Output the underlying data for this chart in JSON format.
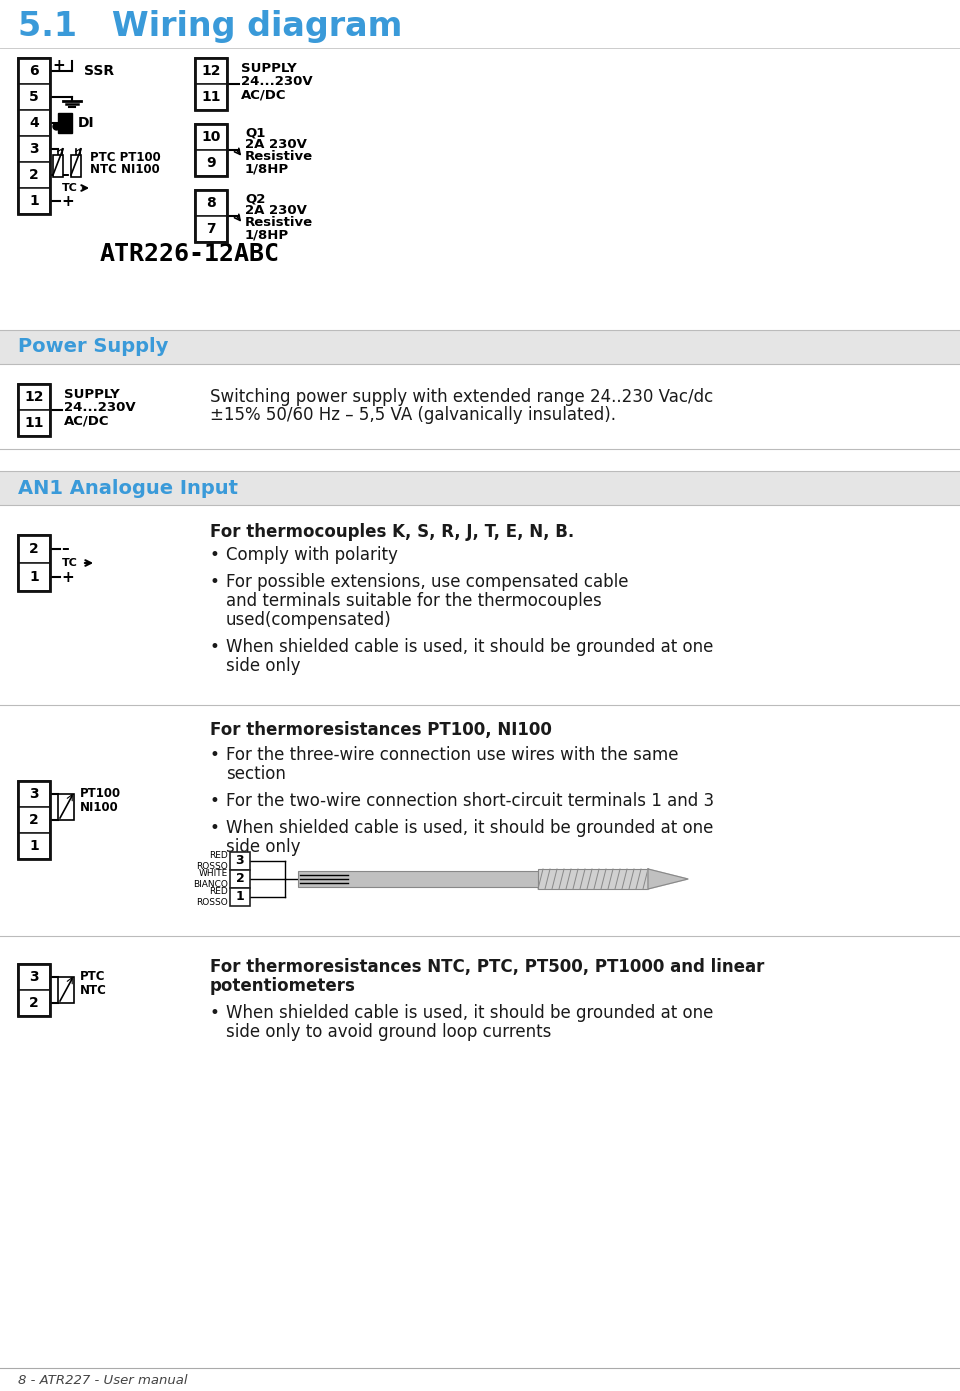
{
  "title": "5.1   Wiring diagram",
  "title_color": "#3a9ad9",
  "title_fontsize": 24,
  "bg_color": "#ffffff",
  "section_bg": "#e8e8e8",
  "section_text_color": "#3a9ad9",
  "body_text_color": "#1a1a1a",
  "footer_text": "8 - ATR227 - User manual",
  "power_supply_header": "Power Supply",
  "power_supply_desc_line1": "Switching power supply with extended range 24..230 Vac/dc",
  "power_supply_desc_line2": "±15% 50/60 Hz – 5,5 VA (galvanically insulated).",
  "an1_header": "AN1 Analogue Input",
  "tc_header": "For thermocouples K, S, R, J, T, E, N, B.",
  "tc_bullets": [
    "Comply with polarity",
    "For possible extensions, use compensated cable\nand terminals suitable for the thermocouples\nused(compensated)",
    "When shielded cable is used, it should be grounded at one\nside only"
  ],
  "pt100_header": "For thermoresistances PT100, NI100",
  "pt100_bullets": [
    "For the three-wire connection use wires with the same\nsection",
    "For the two-wire connection short-circuit terminals 1 and 3",
    "When shielded cable is used, it should be grounded at one\nside only"
  ],
  "ntc_header": "For thermoresistances NTC, PTC, PT500, PT1000 and linear\npotentiometers",
  "ntc_bullets": [
    "When shielded cable is used, it should be grounded at one\nside only to avoid ground loop currents"
  ],
  "model_label": "ATR226-12ABC"
}
